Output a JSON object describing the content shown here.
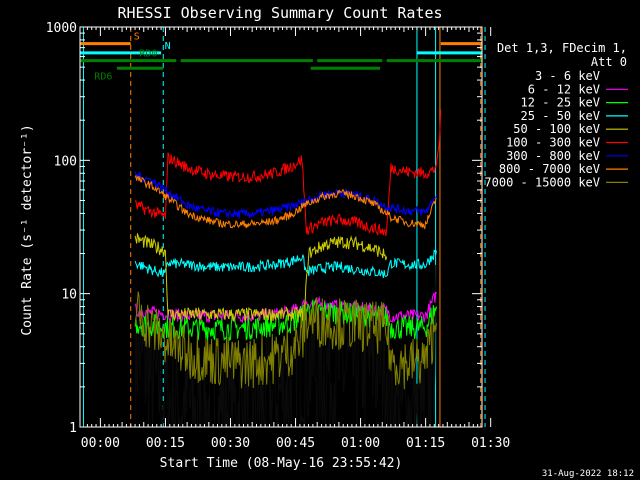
{
  "chart_data": {
    "type": "line",
    "title": "RHESSI Observing Summary Count Rates",
    "xlabel": "Start Time (08-May-16 23:55:42)",
    "ylabel": "Count Rate (s⁻¹ detector⁻¹)",
    "yscale": "log",
    "ylim": [
      1,
      1000
    ],
    "xlim_minutes": [
      -4.7,
      88
    ],
    "x_ticks": [
      {
        "label": "00:00",
        "minutes": 0
      },
      {
        "label": "00:15",
        "minutes": 15
      },
      {
        "label": "00:30",
        "minutes": 30
      },
      {
        "label": "00:45",
        "minutes": 45
      },
      {
        "label": "01:00",
        "minutes": 60
      },
      {
        "label": "01:15",
        "minutes": 75
      },
      {
        "label": "01:30",
        "minutes": 90
      }
    ],
    "y_ticks": [
      {
        "label": "1",
        "value": 1
      },
      {
        "label": "10",
        "value": 10
      },
      {
        "label": "100",
        "value": 100
      },
      {
        "label": "1000",
        "value": 1000
      }
    ],
    "legend": {
      "header": [
        "Det 1,3, FDecim 1,",
        "Att 0"
      ],
      "placement": "right"
    },
    "series": [
      {
        "name": "3 - 6 keV",
        "color": "#000000",
        "x": [
          8,
          12,
          16,
          20,
          24,
          28,
          32,
          36,
          40,
          44,
          46.5,
          47.5,
          51,
          55,
          59,
          63,
          66,
          67,
          71,
          75,
          77.5
        ],
        "y": [
          4,
          2.2,
          1.6,
          1.4,
          1.3,
          1.3,
          1.3,
          1.4,
          1.6,
          2.2,
          3.2,
          3,
          2.8,
          2.6,
          2.8,
          3,
          3.3,
          1.4,
          1.3,
          1.3,
          6
        ]
      },
      {
        "name": "6 - 12 keV",
        "color": "#ff00ff",
        "x": [
          8,
          12,
          16,
          20,
          24,
          28,
          32,
          36,
          40,
          44,
          46.5,
          47.5,
          51,
          55,
          59,
          63,
          66,
          67,
          71,
          75,
          77.5
        ],
        "y": [
          7.5,
          7.2,
          7,
          6.8,
          6.8,
          6.8,
          6.8,
          6.8,
          7,
          7.3,
          8,
          8.5,
          8.3,
          8,
          7.8,
          7.6,
          7.5,
          6.8,
          6.8,
          6.8,
          10
        ]
      },
      {
        "name": "12 - 25 keV",
        "color": "#00ff00",
        "x": [
          8,
          12,
          16,
          20,
          24,
          28,
          32,
          36,
          40,
          44,
          46.5,
          47.5,
          51,
          55,
          59,
          63,
          66,
          67,
          71,
          75,
          77.5
        ],
        "y": [
          6,
          5.8,
          5.6,
          5.5,
          5.5,
          5.5,
          5.5,
          5.6,
          5.8,
          6.1,
          6.8,
          7.6,
          7.4,
          7.2,
          7,
          6.8,
          6.6,
          5.6,
          5.5,
          5.6,
          8
        ]
      },
      {
        "name": "25 - 50 keV",
        "color": "#00ffff",
        "x": [
          8,
          12,
          15,
          15.6,
          20,
          24,
          28,
          32,
          36,
          40,
          44,
          46.5,
          47.5,
          51,
          55,
          59,
          63,
          66,
          67,
          71,
          75,
          77.5
        ],
        "y": [
          17,
          15,
          14,
          17,
          16.5,
          16,
          15.8,
          15.8,
          16,
          16.5,
          17.5,
          19,
          14.5,
          15.5,
          16,
          15.2,
          14.6,
          14,
          17,
          16.5,
          16.5,
          21
        ]
      },
      {
        "name": "50 - 100 keV",
        "color": "#cccc00",
        "x": [
          8,
          12,
          15,
          15.6,
          47,
          48,
          52,
          56,
          60,
          64,
          66
        ],
        "y": [
          26,
          23,
          21,
          7,
          7,
          20,
          23.5,
          24.5,
          23.5,
          21,
          19
        ]
      },
      {
        "name": "100 - 300 keV",
        "color": "#ff0000",
        "x": [
          8,
          12,
          15,
          15.6,
          20,
          24,
          28,
          32,
          36,
          40,
          44,
          46.5,
          47.5,
          51,
          55,
          59,
          63,
          66,
          67,
          71,
          75,
          77,
          78,
          78.5
        ],
        "y": [
          46,
          41,
          38,
          105,
          88,
          80,
          76,
          75,
          76,
          80,
          90,
          102,
          30,
          34,
          36,
          34,
          31,
          29,
          88,
          82,
          80,
          85,
          110,
          240
        ]
      },
      {
        "name": "300 - 800 keV",
        "color": "#0000ff",
        "x": [
          8,
          12,
          15,
          20,
          24,
          28,
          32,
          36,
          40,
          44,
          47,
          51,
          55,
          59,
          63,
          66,
          67,
          71,
          75,
          77.5
        ],
        "y": [
          78,
          70,
          60,
          46,
          42,
          40,
          39.5,
          40,
          42,
          45,
          49,
          55,
          57.5,
          55,
          50,
          45,
          44,
          42,
          41,
          55
        ]
      },
      {
        "name": "800 - 7000 keV",
        "color": "#ff8000",
        "x": [
          8,
          12,
          15,
          20,
          24,
          28,
          32,
          36,
          40,
          44,
          47,
          51,
          55,
          59,
          63,
          66,
          67,
          71,
          75,
          77.5
        ],
        "y": [
          74,
          64,
          54,
          40,
          36,
          33.5,
          33,
          33.5,
          35,
          39,
          46,
          53,
          57,
          54,
          47,
          40,
          37.5,
          34,
          33,
          52
        ]
      },
      {
        "name": "7000 - 15000 keV",
        "color": "#808000",
        "x": [
          8,
          12,
          16,
          20,
          24,
          28,
          32,
          36,
          40,
          44,
          46.5,
          47.5,
          51,
          55,
          59,
          63,
          66,
          67,
          71,
          75,
          77.5
        ],
        "y": [
          7.5,
          5.5,
          4.2,
          3.6,
          3.3,
          3.1,
          3,
          3.1,
          3.3,
          3.8,
          4.6,
          6.5,
          6.2,
          6,
          5.8,
          5.6,
          5.4,
          3.2,
          3,
          3.2,
          6
        ]
      }
    ],
    "status_bars": [
      {
        "label": "S",
        "color": "#ff8000",
        "y_value": 750,
        "segments": [
          [
            -4.7,
            7
          ],
          [
            78.5,
            88
          ]
        ]
      },
      {
        "label": "N",
        "color": "#00ffff",
        "y_value": 640,
        "segments": [
          [
            -4.7,
            14
          ],
          [
            73,
            88
          ]
        ]
      },
      {
        "label": "RD0",
        "color": "#008000",
        "y_value": 560,
        "segments": [
          [
            -4.7,
            17.5
          ],
          [
            18.5,
            49
          ],
          [
            50,
            65
          ],
          [
            66,
            88
          ]
        ]
      },
      {
        "label": "RD6",
        "color": "#008000",
        "y_value": 490,
        "segments": [
          [
            3.8,
            14.5
          ],
          [
            48.5,
            64.5
          ]
        ]
      }
    ],
    "vertical_markers": [
      {
        "minutes": -3.9,
        "color": "#00ffff",
        "style": "solid"
      },
      {
        "minutes": 7,
        "color": "#ff8000",
        "style": "dashed"
      },
      {
        "minutes": 14.5,
        "color": "#00ffff",
        "style": "dashed"
      },
      {
        "minutes": 73,
        "color": "#00ffff",
        "style": "solid"
      },
      {
        "minutes": 77.3,
        "color": "#00ffff",
        "style": "solid"
      },
      {
        "minutes": 78.3,
        "color": "#ff8000",
        "style": "solid"
      },
      {
        "minutes": 87.7,
        "color": "#ff8000",
        "style": "dashed"
      },
      {
        "minutes": 88.7,
        "color": "#00ffff",
        "style": "dashed"
      }
    ],
    "footer": "31-Aug-2022 18:12"
  }
}
